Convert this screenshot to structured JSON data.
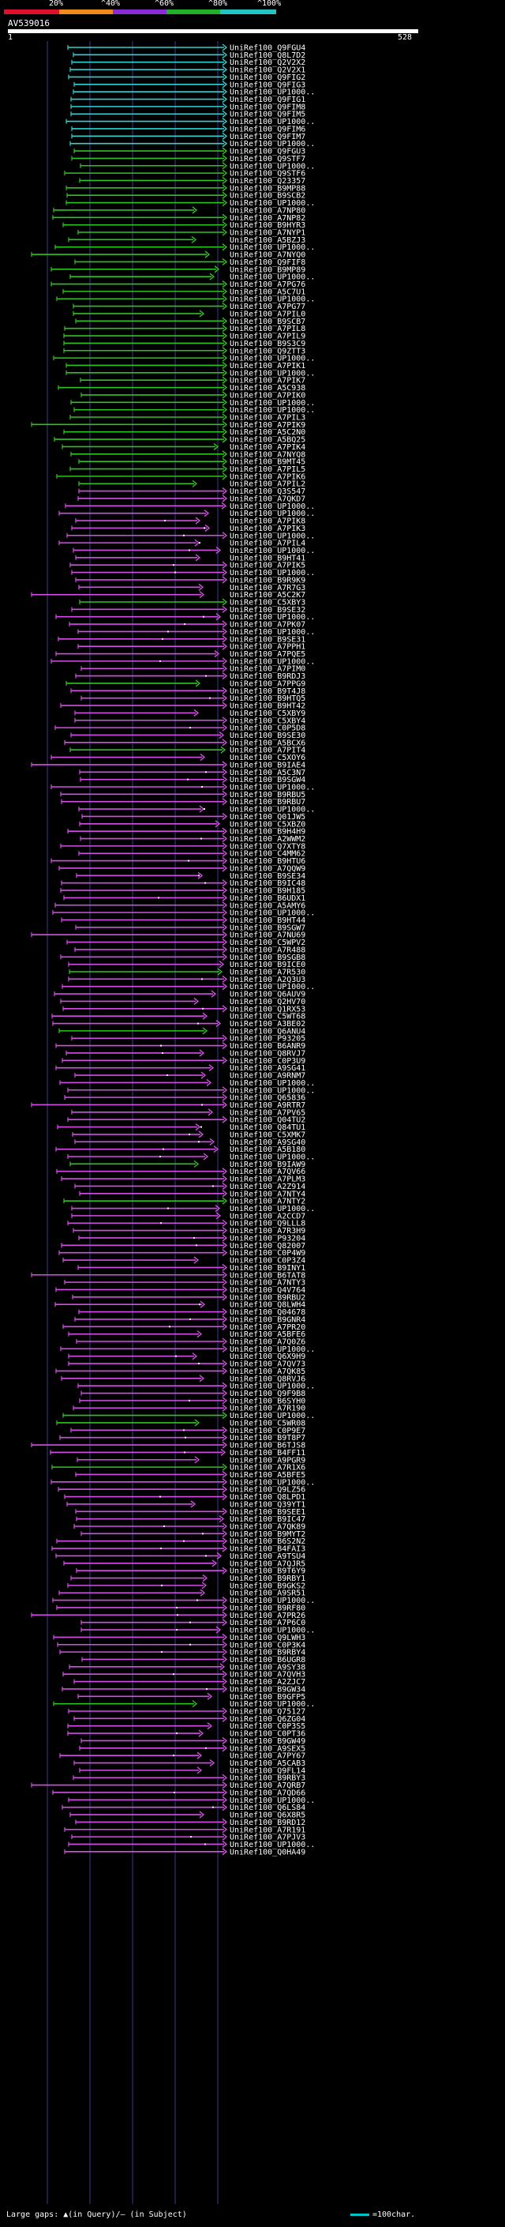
{
  "legend": {
    "percent_labels": [
      "20%",
      "^40%",
      "^60%",
      "^80%",
      "^100%"
    ],
    "bands": [
      {
        "name": "red",
        "color": "#e0102a"
      },
      {
        "name": "orange",
        "color": "#f08a1a"
      },
      {
        "name": "purple",
        "color": "#8b2bd6"
      },
      {
        "name": "green",
        "color": "#22b02a"
      },
      {
        "name": "cyan",
        "color": "#22c4c4"
      }
    ]
  },
  "query": {
    "name": "AV539016",
    "start": "1",
    "end": "528"
  },
  "colors": {
    "cyan": "#33d1d1",
    "green": "#2ec41f",
    "magenta": "#d54ee6",
    "grid": "#3a3a8a",
    "dots": "#ffffff",
    "label": "#ffffff"
  },
  "hits": [
    {
      "label": "UniRef100_Q9FGU4",
      "color": "cyan"
    },
    {
      "label": "UniRef100_Q8L7D2",
      "color": "cyan"
    },
    {
      "label": "UniRef100_Q2V2X2",
      "color": "cyan"
    },
    {
      "label": "UniRef100_Q2V2X1",
      "color": "cyan"
    },
    {
      "label": "UniRef100_Q9FIG2",
      "color": "cyan"
    },
    {
      "label": "UniRef100_Q9FIG3",
      "color": "cyan"
    },
    {
      "label": "UniRef100_UP1000..",
      "color": "cyan"
    },
    {
      "label": "UniRef100_Q9FIG1",
      "color": "cyan"
    },
    {
      "label": "UniRef100_Q9FIM8",
      "color": "cyan"
    },
    {
      "label": "UniRef100_Q9FIM5",
      "color": "cyan"
    },
    {
      "label": "UniRef100_UP1000..",
      "color": "cyan"
    },
    {
      "label": "UniRef100_Q9FIM6",
      "color": "cyan"
    },
    {
      "label": "UniRef100_Q9FIM7",
      "color": "cyan"
    },
    {
      "label": "UniRef100_UP1000..",
      "color": "cyan"
    },
    {
      "label": "UniRef100_Q9FGU3",
      "color": "green"
    },
    {
      "label": "UniRef100_Q9STF7",
      "color": "green"
    },
    {
      "label": "UniRef100_UP1000..",
      "color": "green"
    },
    {
      "label": "UniRef100_Q9STF6",
      "color": "green"
    },
    {
      "label": "UniRef100_Q23357",
      "color": "green"
    },
    {
      "label": "UniRef100_B9MP88",
      "color": "green"
    },
    {
      "label": "UniRef100_B9SCB2",
      "color": "green"
    },
    {
      "label": "UniRef100_UP1000..",
      "color": "green"
    },
    {
      "label": "UniRef100_A7NP80",
      "color": "green"
    },
    {
      "label": "UniRef100_A7NP82",
      "color": "green"
    },
    {
      "label": "UniRef100_B9HYR3",
      "color": "green"
    },
    {
      "label": "UniRef100_A7NYP1",
      "color": "green"
    },
    {
      "label": "UniRef100_A5BZJ3",
      "color": "green"
    },
    {
      "label": "UniRef100_UP1000..",
      "color": "green"
    },
    {
      "label": "UniRef100_A7NYQ0",
      "color": "green"
    },
    {
      "label": "UniRef100_Q9FIF8",
      "color": "green"
    },
    {
      "label": "UniRef100_B9MP89",
      "color": "green"
    },
    {
      "label": "UniRef100_UP1000..",
      "color": "green"
    },
    {
      "label": "UniRef100_A7PG76",
      "color": "green"
    },
    {
      "label": "UniRef100_A5C7U1",
      "color": "green"
    },
    {
      "label": "UniRef100_UP1000..",
      "color": "green"
    },
    {
      "label": "UniRef100_A7PG77",
      "color": "green"
    },
    {
      "label": "UniRef100_A7PIL0",
      "color": "green"
    },
    {
      "label": "UniRef100_B9SCB7",
      "color": "green"
    },
    {
      "label": "UniRef100_A7PIL8",
      "color": "green"
    },
    {
      "label": "UniRef100_A7PIL9",
      "color": "green"
    },
    {
      "label": "UniRef100_B9S3C9",
      "color": "green"
    },
    {
      "label": "UniRef100_Q9ZTT3",
      "color": "green"
    },
    {
      "label": "UniRef100_UP1000..",
      "color": "green"
    },
    {
      "label": "UniRef100_A7PIK1",
      "color": "green"
    },
    {
      "label": "UniRef100_UP1000..",
      "color": "green"
    },
    {
      "label": "UniRef100_A7PIK7",
      "color": "green"
    },
    {
      "label": "UniRef100_A5C938",
      "color": "green"
    },
    {
      "label": "UniRef100_A7PIK0",
      "color": "green"
    },
    {
      "label": "UniRef100_UP1000..",
      "color": "green"
    },
    {
      "label": "UniRef100_UP1000..",
      "color": "green"
    },
    {
      "label": "UniRef100_A7PIL3",
      "color": "green"
    },
    {
      "label": "UniRef100_A7PIK9",
      "color": "green"
    },
    {
      "label": "UniRef100_A5C2N0",
      "color": "green"
    },
    {
      "label": "UniRef100_A5BQ25",
      "color": "green"
    },
    {
      "label": "UniRef100_A7PIK4",
      "color": "green"
    },
    {
      "label": "UniRef100_A7NYQ8",
      "color": "green"
    },
    {
      "label": "UniRef100_B9MT45",
      "color": "green"
    },
    {
      "label": "UniRef100_A7PIL5",
      "color": "green"
    },
    {
      "label": "UniRef100_A7PIK6",
      "color": "green"
    },
    {
      "label": "UniRef100_A7PIL2",
      "color": "green"
    },
    {
      "label": "UniRef100_Q3S547",
      "color": "magenta"
    },
    {
      "label": "UniRef100_A7QKD7",
      "color": "magenta"
    },
    {
      "label": "UniRef100_UP1000..",
      "color": "magenta"
    },
    {
      "label": "UniRef100_UP1000..",
      "color": "magenta"
    },
    {
      "label": "UniRef100_A7PIK8",
      "color": "magenta"
    },
    {
      "label": "UniRef100_A7PIK3",
      "color": "magenta"
    },
    {
      "label": "UniRef100_UP1000..",
      "color": "magenta"
    },
    {
      "label": "UniRef100_A7PIL4",
      "color": "magenta"
    },
    {
      "label": "UniRef100_UP1000..",
      "color": "magenta"
    },
    {
      "label": "UniRef100_B9HT41",
      "color": "magenta"
    },
    {
      "label": "UniRef100_A7PIK5",
      "color": "magenta"
    },
    {
      "label": "UniRef100_UP1000..",
      "color": "magenta"
    },
    {
      "label": "UniRef100_B9R9K9",
      "color": "magenta"
    },
    {
      "label": "UniRef100_A7R7G3",
      "color": "magenta"
    },
    {
      "label": "UniRef100_A5C2K7",
      "color": "magenta"
    },
    {
      "label": "UniRef100_C5XBY3",
      "color": "green"
    },
    {
      "label": "UniRef100_B9SE32",
      "color": "magenta"
    },
    {
      "label": "UniRef100_UP1000..",
      "color": "magenta"
    },
    {
      "label": "UniRef100_A7PK07",
      "color": "magenta"
    },
    {
      "label": "UniRef100_UP1000..",
      "color": "magenta"
    },
    {
      "label": "UniRef100_B9SE31",
      "color": "magenta"
    },
    {
      "label": "UniRef100_A7PPH1",
      "color": "magenta"
    },
    {
      "label": "UniRef100_A7PQE5",
      "color": "magenta"
    },
    {
      "label": "UniRef100_UP1000..",
      "color": "magenta"
    },
    {
      "label": "UniRef100_A7PIM0",
      "color": "magenta"
    },
    {
      "label": "UniRef100_B9RDJ3",
      "color": "magenta"
    },
    {
      "label": "UniRef100_A7PPG9",
      "color": "green"
    },
    {
      "label": "UniRef100_B9T4J8",
      "color": "magenta"
    },
    {
      "label": "UniRef100_B9HTQ5",
      "color": "magenta"
    },
    {
      "label": "UniRef100_B9HT42",
      "color": "magenta"
    },
    {
      "label": "UniRef100_C5XBY9",
      "color": "magenta"
    },
    {
      "label": "UniRef100_C5XBY4",
      "color": "magenta"
    },
    {
      "label": "UniRef100_C0P5D8",
      "color": "magenta"
    },
    {
      "label": "UniRef100_B9SE30",
      "color": "magenta"
    },
    {
      "label": "UniRef100_A5BCX6",
      "color": "magenta"
    },
    {
      "label": "UniRef100_A7PIT4",
      "color": "green"
    },
    {
      "label": "UniRef100_C5XOY6",
      "color": "magenta"
    },
    {
      "label": "UniRef100_B9IAE4",
      "color": "magenta"
    },
    {
      "label": "UniRef100_A5C3N7",
      "color": "magenta"
    },
    {
      "label": "UniRef100_B9SGW4",
      "color": "magenta"
    },
    {
      "label": "UniRef100_UP1000..",
      "color": "magenta"
    },
    {
      "label": "UniRef100_B9RBU5",
      "color": "magenta"
    },
    {
      "label": "UniRef100_B9RBU7",
      "color": "magenta"
    },
    {
      "label": "UniRef100_UP1000..",
      "color": "magenta"
    },
    {
      "label": "UniRef100_Q01JW5",
      "color": "magenta"
    },
    {
      "label": "UniRef100_C5XBZ0",
      "color": "magenta"
    },
    {
      "label": "UniRef100_B9H4H9",
      "color": "magenta"
    },
    {
      "label": "UniRef100_A2WWM2",
      "color": "magenta"
    },
    {
      "label": "UniRef100_Q7XTY8",
      "color": "magenta"
    },
    {
      "label": "UniRef100_C4MM62",
      "color": "magenta"
    },
    {
      "label": "UniRef100_B9HTU6",
      "color": "magenta"
    },
    {
      "label": "UniRef100_A7QQW9",
      "color": "magenta"
    },
    {
      "label": "UniRef100_B9SE34",
      "color": "magenta"
    },
    {
      "label": "UniRef100_B9IC48",
      "color": "magenta"
    },
    {
      "label": "UniRef100_B9H185",
      "color": "magenta"
    },
    {
      "label": "UniRef100_B6UDX1",
      "color": "magenta"
    },
    {
      "label": "UniRef100_A5AMY6",
      "color": "magenta"
    },
    {
      "label": "UniRef100_UP1000..",
      "color": "magenta"
    },
    {
      "label": "UniRef100_B9HT44",
      "color": "magenta"
    },
    {
      "label": "UniRef100_B9SGW7",
      "color": "magenta"
    },
    {
      "label": "UniRef100_A7NU69",
      "color": "magenta"
    },
    {
      "label": "UniRef100_C5WPV2",
      "color": "magenta"
    },
    {
      "label": "UniRef100_A7R488",
      "color": "magenta"
    },
    {
      "label": "UniRef100_B9SGB8",
      "color": "magenta"
    },
    {
      "label": "UniRef100_B9ICE0",
      "color": "magenta"
    },
    {
      "label": "UniRef100_A7R530",
      "color": "green"
    },
    {
      "label": "UniRef100_A2Q3U3",
      "color": "magenta"
    },
    {
      "label": "UniRef100_UP1000..",
      "color": "magenta"
    },
    {
      "label": "UniRef100_Q6AUV9",
      "color": "magenta"
    },
    {
      "label": "UniRef100_Q2HV70",
      "color": "magenta"
    },
    {
      "label": "UniRef100_Q1RX53",
      "color": "magenta"
    },
    {
      "label": "UniRef100_C5WT68",
      "color": "magenta"
    },
    {
      "label": "UniRef100_A3BE02",
      "color": "magenta"
    },
    {
      "label": "UniRef100_Q6ANU4",
      "color": "green"
    },
    {
      "label": "UniRef100_P93205",
      "color": "magenta"
    },
    {
      "label": "UniRef100_B6ANR9",
      "color": "magenta"
    },
    {
      "label": "UniRef100_Q8RVJ7",
      "color": "magenta"
    },
    {
      "label": "UniRef100_C0P3U9",
      "color": "magenta"
    },
    {
      "label": "UniRef100_A9SG41",
      "color": "magenta"
    },
    {
      "label": "UniRef100_A9RNM7",
      "color": "magenta"
    },
    {
      "label": "UniRef100_UP1000..",
      "color": "magenta"
    },
    {
      "label": "UniRef100_UP1000..",
      "color": "magenta"
    },
    {
      "label": "UniRef100_Q65836",
      "color": "magenta"
    },
    {
      "label": "UniRef100_A9RTR7",
      "color": "magenta"
    },
    {
      "label": "UniRef100_A7PV65",
      "color": "magenta"
    },
    {
      "label": "UniRef100_Q04TU2",
      "color": "magenta"
    },
    {
      "label": "UniRef100_Q84TU1",
      "color": "magenta"
    },
    {
      "label": "UniRef100_C5XMK7",
      "color": "magenta"
    },
    {
      "label": "UniRef100_A9SG40",
      "color": "magenta"
    },
    {
      "label": "UniRef100_A5B180",
      "color": "magenta"
    },
    {
      "label": "UniRef100_UP1000..",
      "color": "magenta"
    },
    {
      "label": "UniRef100_B9IAW9",
      "color": "green"
    },
    {
      "label": "UniRef100_A7QV66",
      "color": "magenta"
    },
    {
      "label": "UniRef100_A7PLM3",
      "color": "magenta"
    },
    {
      "label": "UniRef100_A2Z914",
      "color": "magenta"
    },
    {
      "label": "UniRef100_A7NTY4",
      "color": "magenta"
    },
    {
      "label": "UniRef100_A7NTY2",
      "color": "green"
    },
    {
      "label": "UniRef100_UP1000..",
      "color": "magenta"
    },
    {
      "label": "UniRef100_A2CCD7",
      "color": "magenta"
    },
    {
      "label": "UniRef100_Q9LLL8",
      "color": "magenta"
    },
    {
      "label": "UniRef100_A7R3H9",
      "color": "magenta"
    },
    {
      "label": "UniRef100_P93204",
      "color": "magenta"
    },
    {
      "label": "UniRef100_Q82007",
      "color": "magenta"
    },
    {
      "label": "UniRef100_C0P4W9",
      "color": "magenta"
    },
    {
      "label": "UniRef100_C0P3Z4",
      "color": "magenta"
    },
    {
      "label": "UniRef100_B9INY1",
      "color": "magenta"
    },
    {
      "label": "UniRef100_B6TAT8",
      "color": "magenta"
    },
    {
      "label": "UniRef100_A7NTY3",
      "color": "magenta"
    },
    {
      "label": "UniRef100_Q4V764",
      "color": "magenta"
    },
    {
      "label": "UniRef100_B9RBU2",
      "color": "magenta"
    },
    {
      "label": "UniRef100_Q8LWH4",
      "color": "magenta"
    },
    {
      "label": "UniRef100_Q04678",
      "color": "magenta"
    },
    {
      "label": "UniRef100_B9GNR4",
      "color": "magenta"
    },
    {
      "label": "UniRef100_A7PR20",
      "color": "magenta"
    },
    {
      "label": "UniRef100_A5BFE6",
      "color": "magenta"
    },
    {
      "label": "UniRef100_A7Q0Z6",
      "color": "magenta"
    },
    {
      "label": "UniRef100_UP1000..",
      "color": "magenta"
    },
    {
      "label": "UniRef100_Q6X9H9",
      "color": "magenta"
    },
    {
      "label": "UniRef100_A7QV73",
      "color": "magenta"
    },
    {
      "label": "UniRef100_A7QK85",
      "color": "magenta"
    },
    {
      "label": "UniRef100_Q8RVJ6",
      "color": "magenta"
    },
    {
      "label": "UniRef100_UP1000..",
      "color": "magenta"
    },
    {
      "label": "UniRef100_Q9F9B8",
      "color": "magenta"
    },
    {
      "label": "UniRef100_B6SYH0",
      "color": "magenta"
    },
    {
      "label": "UniRef100_A7R190",
      "color": "magenta"
    },
    {
      "label": "UniRef100_UP1000..",
      "color": "green"
    },
    {
      "label": "UniRef100_C5WR08",
      "color": "green"
    },
    {
      "label": "UniRef100_C0P9E7",
      "color": "magenta"
    },
    {
      "label": "UniRef100_B9T8P7",
      "color": "magenta"
    },
    {
      "label": "UniRef100_B6TJS8",
      "color": "magenta"
    },
    {
      "label": "UniRef100_B4FF11",
      "color": "magenta"
    },
    {
      "label": "UniRef100_A9PGR9",
      "color": "magenta"
    },
    {
      "label": "UniRef100_A7R1X6",
      "color": "green"
    },
    {
      "label": "UniRef100_A5BFE5",
      "color": "magenta"
    },
    {
      "label": "UniRef100_UP1000..",
      "color": "magenta"
    },
    {
      "label": "UniRef100_Q9LZ56",
      "color": "magenta"
    },
    {
      "label": "UniRef100_Q8LPD1",
      "color": "magenta"
    },
    {
      "label": "UniRef100_Q39YT1",
      "color": "magenta"
    },
    {
      "label": "UniRef100_B9SEE1",
      "color": "magenta"
    },
    {
      "label": "UniRef100_B9IC47",
      "color": "magenta"
    },
    {
      "label": "UniRef100_A7QK89",
      "color": "magenta"
    },
    {
      "label": "UniRef100_B9MYT2",
      "color": "magenta"
    },
    {
      "label": "UniRef100_B6S2N2",
      "color": "magenta"
    },
    {
      "label": "UniRef100_B4FAI3",
      "color": "magenta"
    },
    {
      "label": "UniRef100_A9TSU4",
      "color": "magenta"
    },
    {
      "label": "UniRef100_A7QJR5",
      "color": "magenta"
    },
    {
      "label": "UniRef100_B9T6Y9",
      "color": "magenta"
    },
    {
      "label": "UniRef100_B9RBY1",
      "color": "magenta"
    },
    {
      "label": "UniRef100_B9GKS2",
      "color": "magenta"
    },
    {
      "label": "UniRef100_A9SR51",
      "color": "magenta"
    },
    {
      "label": "UniRef100_UP1000..",
      "color": "magenta"
    },
    {
      "label": "UniRef100_B9RF80",
      "color": "magenta"
    },
    {
      "label": "UniRef100_A7PR26",
      "color": "magenta"
    },
    {
      "label": "UniRef100_A7P6C0",
      "color": "magenta"
    },
    {
      "label": "UniRef100_UP1000..",
      "color": "magenta"
    },
    {
      "label": "UniRef100_Q9LWH3",
      "color": "magenta"
    },
    {
      "label": "UniRef100_C0P3K4",
      "color": "magenta"
    },
    {
      "label": "UniRef100_B9RBY4",
      "color": "magenta"
    },
    {
      "label": "UniRef100_B6UGR8",
      "color": "magenta"
    },
    {
      "label": "UniRef100_A9SY38",
      "color": "magenta"
    },
    {
      "label": "UniRef100_A7QVH3",
      "color": "magenta"
    },
    {
      "label": "UniRef100_A2ZJC7",
      "color": "magenta"
    },
    {
      "label": "UniRef100_B9GW34",
      "color": "magenta"
    },
    {
      "label": "UniRef100_B9GFP5",
      "color": "magenta"
    },
    {
      "label": "UniRef100_UP1000..",
      "color": "green"
    },
    {
      "label": "UniRef100_Q75127",
      "color": "magenta"
    },
    {
      "label": "UniRef100_Q6ZG04",
      "color": "magenta"
    },
    {
      "label": "UniRef100_C0P3S5",
      "color": "magenta"
    },
    {
      "label": "UniRef100_C0PT36",
      "color": "magenta"
    },
    {
      "label": "UniRef100_B9GW49",
      "color": "magenta"
    },
    {
      "label": "UniRef100_A9SEX5",
      "color": "magenta"
    },
    {
      "label": "UniRef100_A7PY67",
      "color": "magenta"
    },
    {
      "label": "UniRef100_A5CAB3",
      "color": "magenta"
    },
    {
      "label": "UniRef100_Q9FL14",
      "color": "magenta"
    },
    {
      "label": "UniRef100_B9RBY3",
      "color": "magenta"
    },
    {
      "label": "UniRef100_A7QRB7",
      "color": "magenta"
    },
    {
      "label": "UniRef100_A7QD66",
      "color": "magenta"
    },
    {
      "label": "UniRef100_UP1000..",
      "color": "magenta"
    },
    {
      "label": "UniRef100_Q6LS84",
      "color": "magenta"
    },
    {
      "label": "UniRef100_Q6X8R5",
      "color": "magenta"
    },
    {
      "label": "UniRef100_B9RD12",
      "color": "magenta"
    },
    {
      "label": "UniRef100_A7R191",
      "color": "magenta"
    },
    {
      "label": "UniRef100_A7PJV3",
      "color": "magenta"
    },
    {
      "label": "UniRef100_UP1000..",
      "color": "magenta"
    },
    {
      "label": "UniRef100_Q0HA49",
      "color": "magenta"
    }
  ],
  "footer": {
    "gaps_text": "Large gaps: ▲(in Query)/― (in Subject)",
    "scale_text": "=100char."
  }
}
